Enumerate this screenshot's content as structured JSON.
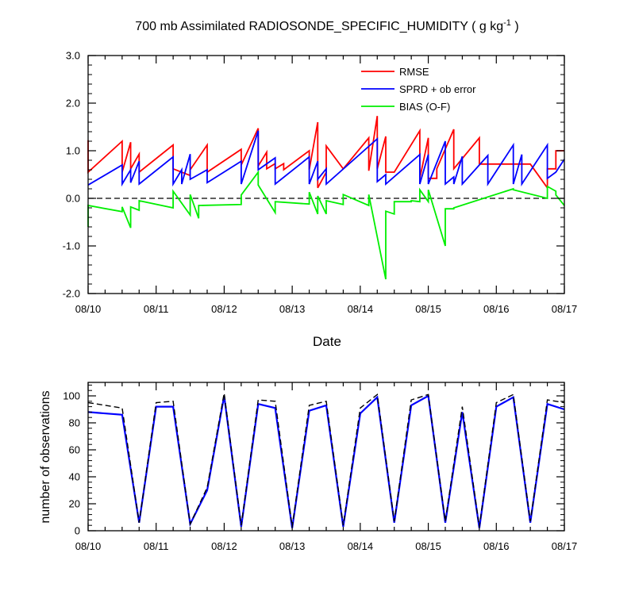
{
  "chart_data": [
    {
      "type": "line",
      "title": "700 mb Assimilated RADIOSONDE_SPECIFIC_HUMIDITY ( g kg",
      "title_sup": "-1",
      "title_end": " )",
      "xlabel": "Date",
      "ylabel": "",
      "ylim": [
        -2.0,
        3.0
      ],
      "yticks": [
        "-2.0",
        "-1.0",
        "0.0",
        "1.0",
        "2.0",
        "3.0"
      ],
      "xlim": [
        "08/10 00Z",
        "08/17 00Z"
      ],
      "xticks": [
        "08/10",
        "08/11",
        "08/12",
        "08/13",
        "08/14",
        "08/15",
        "08/16",
        "08/17"
      ],
      "grid": false,
      "legend_position": "top-right",
      "zero_line": true,
      "colors": {
        "RMSE": "#ff0000",
        "SPRD + ob error": "#0000ff",
        "BIAS (O-F)": "#00ee00",
        "zero": "#000000"
      },
      "series": [
        {
          "name": "RMSE",
          "x": [
            0,
            0,
            12,
            12,
            15,
            15,
            18,
            18,
            30,
            30,
            36,
            36,
            42,
            42,
            54,
            54,
            60,
            60,
            63,
            63,
            66,
            66,
            69,
            69,
            78,
            78,
            81,
            81,
            84,
            84,
            90,
            90,
            99,
            99,
            102,
            102,
            105,
            105,
            108,
            108,
            117,
            117,
            120,
            120,
            123,
            123,
            129,
            129,
            138,
            138,
            141,
            141,
            144,
            144,
            150,
            150,
            156,
            156,
            162,
            162,
            165,
            165,
            168
          ],
          "y": [
            1.22,
            0.55,
            1.2,
            0.55,
            1.18,
            0.62,
            0.93,
            0.55,
            1.12,
            0.62,
            0.48,
            0.6,
            1.12,
            0.55,
            1.03,
            0.7,
            1.47,
            0.68,
            0.97,
            0.62,
            0.73,
            0.62,
            0.73,
            0.6,
            1.0,
            0.6,
            1.6,
            0.22,
            0.55,
            1.1,
            0.62,
            0.62,
            1.27,
            0.58,
            1.73,
            0.62,
            1.3,
            0.55,
            0.55,
            0.55,
            1.42,
            0.42,
            1.27,
            0.42,
            0.42,
            0.62,
            1.45,
            0.62,
            1.27,
            0.72,
            0.72,
            0.72,
            0.72,
            0.72,
            0.72,
            0.72,
            0.72,
            0.72,
            0.22,
            0.62,
            0.62,
            1.0,
            1.0
          ]
        },
        {
          "name": "SPRD + ob error",
          "x": [
            0,
            12,
            12,
            15,
            15,
            18,
            18,
            30,
            30,
            33,
            33,
            36,
            36,
            42,
            42,
            54,
            54,
            60,
            60,
            66,
            66,
            78,
            78,
            81,
            81,
            84,
            84,
            102,
            102,
            105,
            105,
            117,
            117,
            120,
            120,
            126,
            126,
            129,
            129,
            132,
            132,
            141,
            141,
            150,
            150,
            153,
            153,
            162,
            162,
            165,
            165,
            168
          ],
          "y": [
            0.28,
            0.7,
            0.3,
            0.6,
            0.33,
            0.78,
            0.3,
            0.87,
            0.3,
            0.6,
            0.3,
            0.93,
            0.4,
            0.6,
            0.33,
            0.78,
            0.3,
            1.42,
            0.6,
            0.85,
            0.3,
            0.87,
            0.3,
            0.78,
            0.4,
            0.62,
            0.3,
            1.25,
            0.35,
            0.5,
            0.3,
            0.92,
            0.3,
            0.92,
            0.3,
            1.2,
            0.3,
            0.45,
            0.3,
            0.88,
            0.3,
            0.9,
            0.3,
            1.12,
            0.3,
            0.92,
            0.3,
            1.12,
            0.42,
            0.55,
            0.55,
            0.82
          ]
        },
        {
          "name": "BIAS (O-F)",
          "x": [
            0,
            0,
            12,
            12,
            15,
            15,
            18,
            18,
            30,
            30,
            36,
            36,
            39,
            39,
            54,
            54,
            60,
            60,
            66,
            66,
            78,
            78,
            81,
            81,
            84,
            84,
            90,
            90,
            99,
            99,
            105,
            105,
            108,
            108,
            114,
            114,
            117,
            117,
            120,
            120,
            126,
            126,
            129,
            129,
            150,
            150,
            162,
            162,
            165,
            165,
            168
          ],
          "y": [
            -0.6,
            -0.15,
            -0.28,
            -0.18,
            -0.62,
            -0.18,
            -0.25,
            -0.05,
            -0.2,
            0.15,
            -0.35,
            0.08,
            -0.42,
            -0.15,
            -0.13,
            0.07,
            0.55,
            0.28,
            -0.3,
            -0.07,
            -0.12,
            0.13,
            -0.33,
            0.05,
            -0.33,
            -0.05,
            -0.13,
            0.08,
            -0.15,
            0.08,
            -1.7,
            -0.27,
            -0.33,
            -0.07,
            -0.07,
            -0.05,
            -0.07,
            0.18,
            -0.07,
            0.18,
            -1.0,
            -0.22,
            -0.22,
            -0.2,
            0.2,
            0.18,
            0.0,
            0.25,
            0.15,
            0.07,
            -0.15
          ]
        }
      ]
    },
    {
      "type": "line",
      "title": "",
      "xlabel": "",
      "ylabel": "number of observations",
      "ylim": [
        0,
        110
      ],
      "yticks": [
        "0",
        "20",
        "40",
        "60",
        "80",
        "100"
      ],
      "xlim": [
        "08/10 00Z",
        "08/17 00Z"
      ],
      "xticks": [
        "08/10",
        "08/11",
        "08/12",
        "08/13",
        "08/14",
        "08/15",
        "08/16",
        "08/17"
      ],
      "grid": false,
      "colors": {
        "solid": "#0000ff",
        "dashed": "#000000"
      },
      "series": [
        {
          "style": "solid",
          "x": [
            0,
            12,
            18,
            24,
            30,
            36,
            42,
            48,
            54,
            60,
            66,
            72,
            78,
            84,
            90,
            96,
            102,
            108,
            114,
            120,
            126,
            132,
            138,
            144,
            150,
            156,
            162,
            168
          ],
          "y": [
            88,
            86,
            6,
            92,
            92,
            5,
            30,
            100,
            3,
            94,
            91,
            2,
            89,
            93,
            3,
            87,
            99,
            6,
            93,
            100,
            6,
            88,
            2,
            92,
            99,
            6,
            94,
            90
          ]
        },
        {
          "style": "dashed",
          "x": [
            0,
            12,
            18,
            24,
            30,
            36,
            42,
            48,
            54,
            60,
            66,
            72,
            78,
            84,
            90,
            96,
            102,
            108,
            114,
            120,
            126,
            132,
            138,
            144,
            150,
            156,
            162,
            168
          ],
          "y": [
            95,
            91,
            6,
            95,
            96,
            5,
            32,
            102,
            4,
            97,
            96,
            3,
            93,
            96,
            4,
            91,
            101,
            7,
            97,
            101,
            7,
            92,
            3,
            95,
            101,
            7,
            97,
            95
          ]
        }
      ]
    }
  ]
}
